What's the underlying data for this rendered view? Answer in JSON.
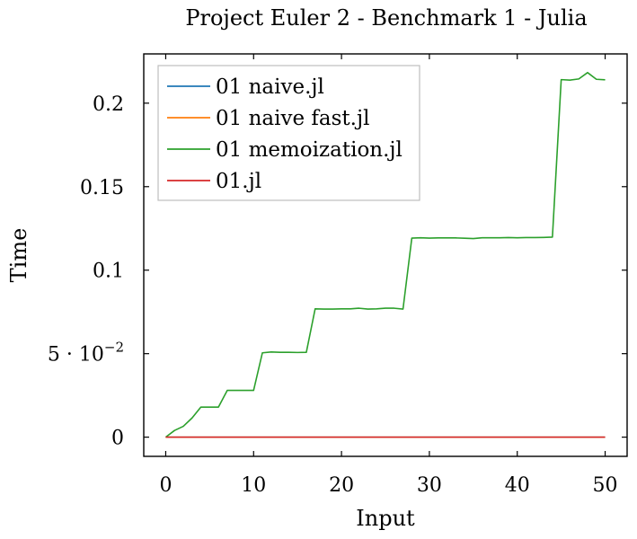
{
  "chart_data": {
    "type": "line",
    "title": "Project Euler 2 - Benchmark 1 - Julia",
    "xlabel": "Input",
    "ylabel": "Time",
    "xlim": [
      -2.5,
      52.5
    ],
    "ylim": [
      -0.0115,
      0.2295
    ],
    "x_ticks": [
      0,
      10,
      20,
      30,
      40,
      50
    ],
    "x_tick_labels": [
      "0",
      "10",
      "20",
      "30",
      "40",
      "50"
    ],
    "y_ticks": [
      0,
      0.05,
      0.1,
      0.15,
      0.2
    ],
    "y_tick_labels": [
      {
        "mant": "0",
        "sup": ""
      },
      {
        "mant": "5 · 10",
        "sup": "−2"
      },
      {
        "mant": "0.1",
        "sup": ""
      },
      {
        "mant": "0.15",
        "sup": ""
      },
      {
        "mant": "0.2",
        "sup": ""
      }
    ],
    "legend_position": "top-left",
    "grid": false,
    "series": [
      {
        "name": "01 naive.jl",
        "color": "#1f77b4",
        "x": [
          0,
          1,
          2,
          3,
          4,
          5,
          6,
          7,
          8,
          9,
          10,
          11,
          12,
          13,
          14,
          15,
          16,
          17,
          18,
          19,
          20,
          21,
          22,
          23,
          24,
          25,
          26,
          27,
          28,
          29,
          30,
          31,
          32,
          33,
          34,
          35,
          36,
          37,
          38,
          39,
          40,
          41,
          42,
          43,
          44,
          45,
          46,
          47,
          48,
          49,
          50
        ],
        "y": [
          0,
          0,
          0,
          0,
          0,
          0,
          0,
          0,
          0,
          0,
          0,
          0,
          0,
          0,
          0,
          0,
          0,
          0,
          0,
          0,
          0,
          0,
          0,
          0,
          0,
          0,
          0,
          0,
          0,
          0,
          0,
          0,
          0,
          0,
          0,
          0,
          0,
          0,
          0,
          0,
          0,
          0,
          0,
          0,
          0,
          0,
          0,
          0,
          0,
          0,
          0
        ]
      },
      {
        "name": "01 naive fast.jl",
        "color": "#ff7f0e",
        "x": [
          0,
          1,
          2,
          3,
          4,
          5,
          6,
          7,
          8,
          9,
          10,
          11,
          12,
          13,
          14,
          15,
          16,
          17,
          18,
          19,
          20,
          21,
          22,
          23,
          24,
          25,
          26,
          27,
          28,
          29,
          30,
          31,
          32,
          33,
          34,
          35,
          36,
          37,
          38,
          39,
          40,
          41,
          42,
          43,
          44,
          45,
          46,
          47,
          48,
          49,
          50
        ],
        "y": [
          0,
          0,
          0,
          0,
          0,
          0,
          0,
          0,
          0,
          0,
          0,
          0,
          0,
          0,
          0,
          0,
          0,
          0,
          0,
          0,
          0,
          0,
          0,
          0,
          0,
          0,
          0,
          0,
          0,
          0,
          0,
          0,
          0,
          0,
          0,
          0,
          0,
          0,
          0,
          0,
          0,
          0,
          0,
          0,
          0,
          0,
          0,
          0,
          0,
          0,
          0
        ]
      },
      {
        "name": "01 memoization.jl",
        "color": "#2ca02c",
        "x": [
          0,
          1,
          2,
          3,
          4,
          5,
          6,
          7,
          8,
          9,
          10,
          11,
          12,
          13,
          14,
          15,
          16,
          17,
          18,
          19,
          20,
          21,
          22,
          23,
          24,
          25,
          26,
          27,
          28,
          29,
          30,
          31,
          32,
          33,
          34,
          35,
          36,
          37,
          38,
          39,
          40,
          41,
          42,
          43,
          44,
          45,
          46,
          47,
          48,
          49,
          50
        ],
        "y": [
          0,
          0.004,
          0.0065,
          0.0115,
          0.018,
          0.018,
          0.018,
          0.028,
          0.028,
          0.028,
          0.028,
          0.0505,
          0.051,
          0.0508,
          0.0508,
          0.0507,
          0.0508,
          0.0768,
          0.0767,
          0.0767,
          0.0768,
          0.0768,
          0.0772,
          0.0767,
          0.0768,
          0.0772,
          0.0772,
          0.0767,
          0.1192,
          0.1194,
          0.1192,
          0.1193,
          0.1193,
          0.1193,
          0.1191,
          0.1189,
          0.1194,
          0.1194,
          0.1194,
          0.1195,
          0.1194,
          0.1195,
          0.1195,
          0.1196,
          0.1198,
          0.2141,
          0.2138,
          0.2145,
          0.2183,
          0.2143,
          0.214
        ]
      },
      {
        "name": "01.jl",
        "color": "#d62728",
        "x": [
          0,
          1,
          2,
          3,
          4,
          5,
          6,
          7,
          8,
          9,
          10,
          11,
          12,
          13,
          14,
          15,
          16,
          17,
          18,
          19,
          20,
          21,
          22,
          23,
          24,
          25,
          26,
          27,
          28,
          29,
          30,
          31,
          32,
          33,
          34,
          35,
          36,
          37,
          38,
          39,
          40,
          41,
          42,
          43,
          44,
          45,
          46,
          47,
          48,
          49,
          50
        ],
        "y": [
          0,
          0,
          0,
          0,
          0,
          0,
          0,
          0,
          0,
          0,
          0,
          0,
          0,
          0,
          0,
          0,
          0,
          0,
          0,
          0,
          0,
          0,
          0,
          0,
          0,
          0,
          0,
          0,
          0,
          0,
          0,
          0,
          0,
          0,
          0,
          0,
          0,
          0,
          0,
          0,
          0,
          0,
          0,
          0,
          0,
          0,
          0,
          0,
          0,
          0,
          0
        ]
      }
    ]
  }
}
